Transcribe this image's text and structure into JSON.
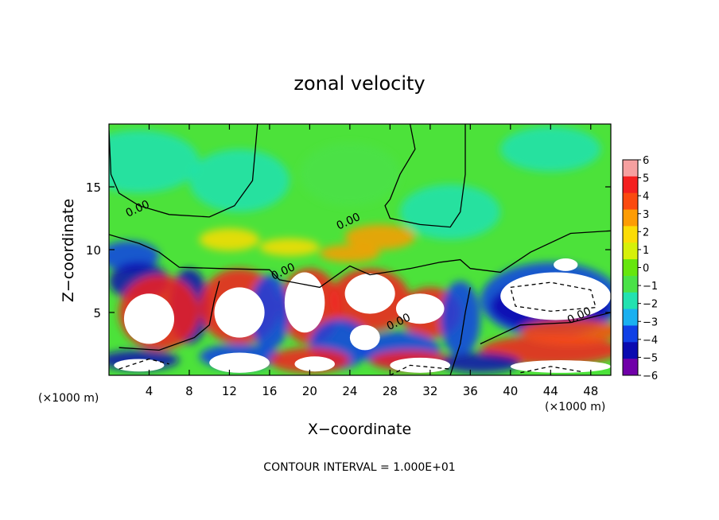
{
  "chart_data": {
    "type": "heatmap",
    "title": "zonal velocity",
    "xlabel": "X−coordinate",
    "ylabel": "Z−coordinate",
    "x_unit_left": "(×1000 m)",
    "x_unit_right": "(×1000 m)",
    "footer": "CONTOUR INTERVAL = 1.000E+01",
    "xlim": [
      0,
      50
    ],
    "ylim": [
      0,
      20
    ],
    "xticks": [
      4,
      8,
      12,
      16,
      20,
      24,
      28,
      32,
      36,
      40,
      44,
      48
    ],
    "yticks": [
      5,
      10,
      15
    ],
    "colorbar": {
      "range": [
        -6,
        6
      ],
      "ticks": [
        6,
        5,
        4,
        3,
        2,
        1,
        0,
        -1,
        -2,
        -3,
        -4,
        -5,
        -6
      ],
      "colors": [
        "#f6a0a0",
        "#f42020",
        "#fb4a10",
        "#fd9c04",
        "#fbdc06",
        "#d6f00a",
        "#66e60e",
        "#4ae248",
        "#22e2b0",
        "#1ab0f0",
        "#1040e6",
        "#0a0ab0",
        "#7000a8"
      ]
    },
    "contour_labels": [
      {
        "x": 3,
        "z": 13.0,
        "text": "0.00"
      },
      {
        "x": 24,
        "z": 12.0,
        "text": "0.00"
      },
      {
        "x": 17.5,
        "z": 8.0,
        "text": "0.00"
      },
      {
        "x": 29,
        "z": 4.0,
        "text": "0.00"
      },
      {
        "x": 47,
        "z": 4.5,
        "text": "0.00"
      }
    ]
  }
}
